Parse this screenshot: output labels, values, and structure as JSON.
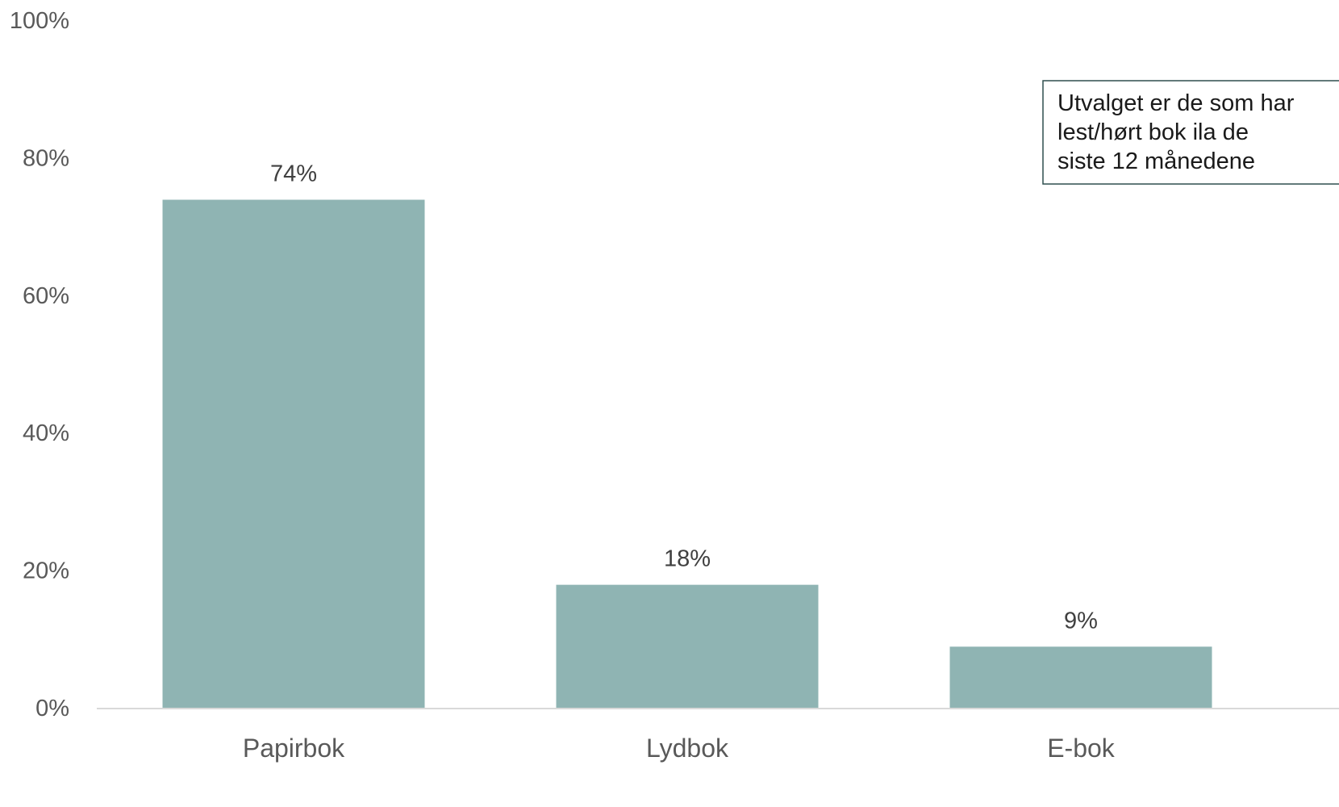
{
  "chart_data": {
    "type": "bar",
    "categories": [
      "Papirbok",
      "Lydbok",
      "E-bok"
    ],
    "values": [
      74,
      18,
      9
    ],
    "value_labels": [
      "74%",
      "18%",
      "9%"
    ],
    "title": "",
    "xlabel": "",
    "ylabel": "",
    "ylim": [
      0,
      100
    ],
    "yticks": [
      0,
      20,
      40,
      60,
      80,
      100
    ],
    "ytick_labels": [
      "0%",
      "20%",
      "40%",
      "60%",
      "80%",
      "100%"
    ],
    "grid": false,
    "bar_color": "#8fb4b3",
    "annotation": {
      "lines": [
        "Utvalget er de som har",
        "lest/hørt bok ila de",
        "siste 12 månedene"
      ],
      "border_color": "#2f4f4f"
    }
  }
}
